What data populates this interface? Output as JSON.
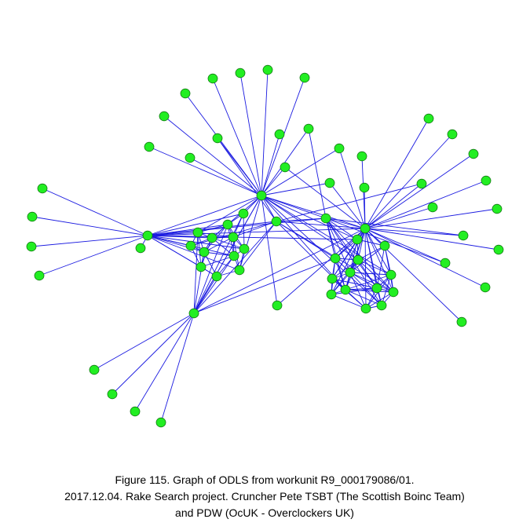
{
  "caption": {
    "lines": [
      "Figure 115. Graph of ODLS from workunit R9_000179086/01.",
      "2017.12.04. Rake Search project. Cruncher Pete TSBT (The Scottish Boinc Team)",
      "and PDW (OcUK - Overclockers UK)"
    ]
  }
}
